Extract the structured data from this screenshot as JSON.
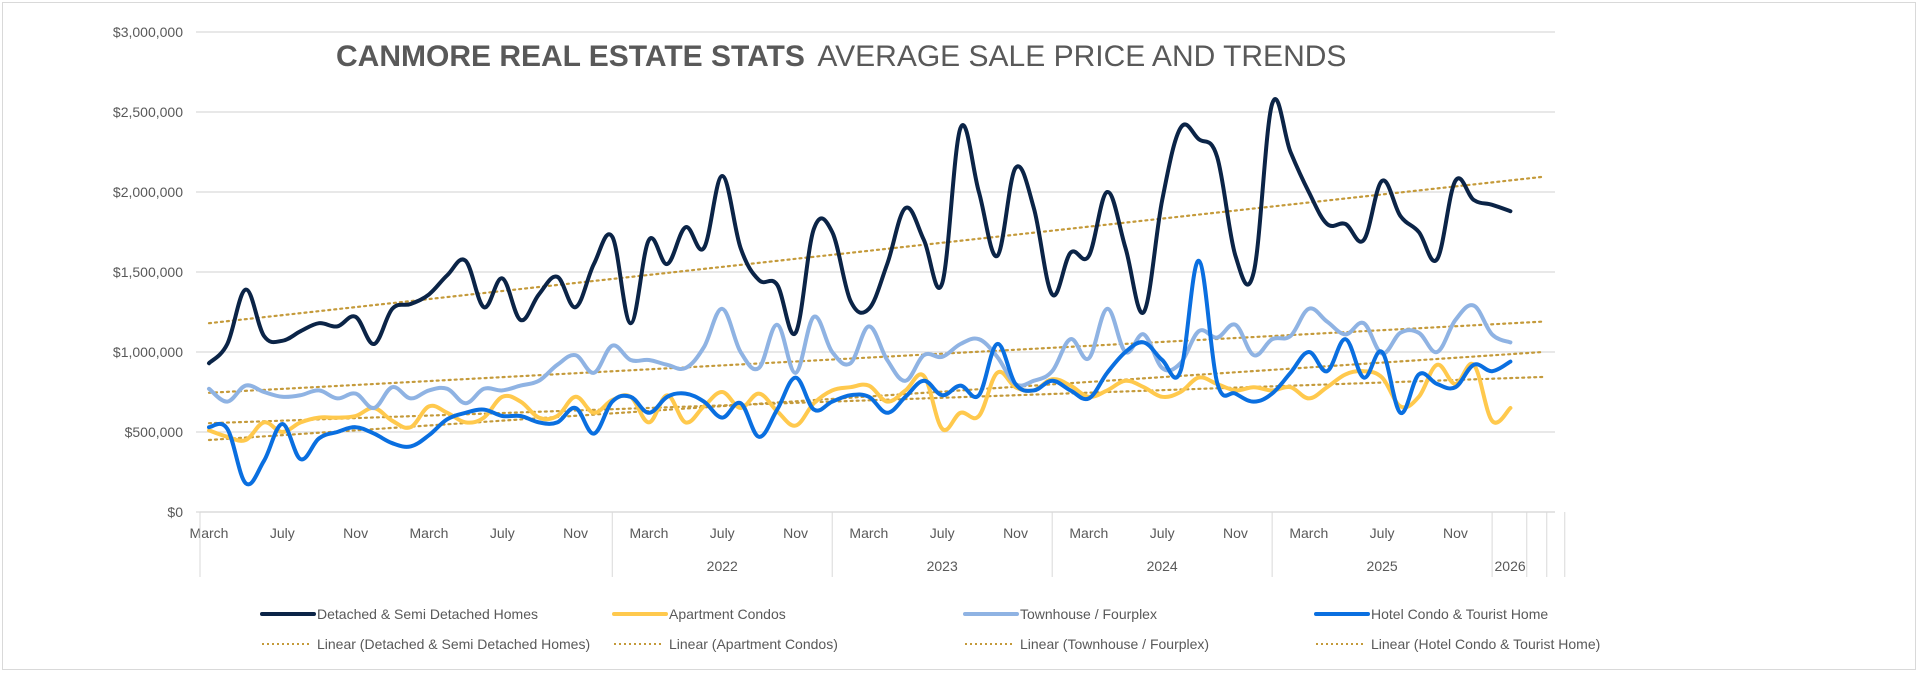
{
  "chart_data": {
    "type": "line",
    "title_bold": "CANMORE REAL ESTATE STATS",
    "title_rest": "AVERAGE SALE PRICE AND TRENDS",
    "xlabel": "",
    "ylabel": "",
    "ylim": [
      0,
      3000000
    ],
    "yticks": [
      0,
      500000,
      1000000,
      1500000,
      2000000,
      2500000,
      3000000
    ],
    "ytick_labels": [
      "$0",
      "$500,000",
      "$1,000,000",
      "$1,500,000",
      "$2,000,000",
      "$2,500,000",
      "$3,000,000"
    ],
    "grid": true,
    "legend_position": "bottom",
    "x_start": "March 2020",
    "x_month_labels": [
      {
        "label": "March",
        "index": 0
      },
      {
        "label": "July",
        "index": 4
      },
      {
        "label": "Nov",
        "index": 8
      },
      {
        "label": "March",
        "index": 12
      },
      {
        "label": "July",
        "index": 16
      },
      {
        "label": "Nov",
        "index": 20
      },
      {
        "label": "March",
        "index": 24
      },
      {
        "label": "July",
        "index": 28
      },
      {
        "label": "Nov",
        "index": 32
      },
      {
        "label": "March",
        "index": 36
      },
      {
        "label": "July",
        "index": 40
      },
      {
        "label": "Nov",
        "index": 44
      },
      {
        "label": "March",
        "index": 48
      },
      {
        "label": "July",
        "index": 52
      },
      {
        "label": "Nov",
        "index": 56
      },
      {
        "label": "March",
        "index": 60
      },
      {
        "label": "July",
        "index": 64
      },
      {
        "label": "Nov",
        "index": 68
      }
    ],
    "x_year_groups": [
      {
        "label": "",
        "start": -2,
        "end": 22
      },
      {
        "label": "2022",
        "start": 22,
        "end": 34
      },
      {
        "label": "2023",
        "start": 34,
        "end": 46
      },
      {
        "label": "2024",
        "start": 46,
        "end": 58
      },
      {
        "label": "2025",
        "start": 58,
        "end": 70
      },
      {
        "label": "2026",
        "start": 70,
        "end": 72
      }
    ],
    "series": [
      {
        "name": "Detached & Semi Detached Homes",
        "color": "#0b2447",
        "values": [
          930000,
          1050000,
          1390000,
          1100000,
          1070000,
          1130000,
          1180000,
          1160000,
          1220000,
          1050000,
          1270000,
          1300000,
          1360000,
          1480000,
          1570000,
          1280000,
          1460000,
          1200000,
          1360000,
          1470000,
          1280000,
          1550000,
          1720000,
          1180000,
          1700000,
          1550000,
          1780000,
          1650000,
          2100000,
          1650000,
          1450000,
          1420000,
          1120000,
          1770000,
          1750000,
          1320000,
          1270000,
          1550000,
          1900000,
          1700000,
          1430000,
          2400000,
          2000000,
          1600000,
          2150000,
          1900000,
          1360000,
          1620000,
          1600000,
          2000000,
          1650000,
          1250000,
          1950000,
          2400000,
          2330000,
          2220000,
          1600000,
          1500000,
          2550000,
          2250000,
          2000000,
          1800000,
          1800000,
          1700000,
          2070000,
          1850000,
          1750000,
          1580000,
          2070000,
          1950000,
          1920000,
          1880000
        ]
      },
      {
        "name": "Apartment Condos",
        "color": "#ffc94d",
        "values": [
          510000,
          470000,
          450000,
          560000,
          500000,
          560000,
          590000,
          590000,
          600000,
          650000,
          570000,
          530000,
          660000,
          620000,
          560000,
          590000,
          720000,
          690000,
          590000,
          600000,
          720000,
          620000,
          700000,
          720000,
          560000,
          730000,
          560000,
          660000,
          750000,
          650000,
          740000,
          630000,
          540000,
          680000,
          760000,
          780000,
          790000,
          690000,
          760000,
          850000,
          520000,
          620000,
          600000,
          870000,
          780000,
          760000,
          830000,
          790000,
          720000,
          760000,
          820000,
          780000,
          720000,
          750000,
          840000,
          800000,
          760000,
          780000,
          760000,
          780000,
          710000,
          780000,
          860000,
          880000,
          840000,
          660000,
          720000,
          920000,
          800000,
          920000,
          570000,
          650000
        ]
      },
      {
        "name": "Townhouse / Fourplex",
        "color": "#8fb3e3",
        "values": [
          770000,
          690000,
          790000,
          750000,
          720000,
          730000,
          760000,
          710000,
          740000,
          650000,
          780000,
          710000,
          760000,
          770000,
          680000,
          770000,
          760000,
          790000,
          820000,
          920000,
          980000,
          870000,
          1040000,
          950000,
          950000,
          920000,
          900000,
          1030000,
          1270000,
          1000000,
          900000,
          1170000,
          870000,
          1220000,
          1000000,
          930000,
          1160000,
          950000,
          820000,
          980000,
          970000,
          1050000,
          1080000,
          970000,
          800000,
          820000,
          880000,
          1080000,
          960000,
          1270000,
          1000000,
          1110000,
          900000,
          930000,
          1130000,
          1090000,
          1170000,
          980000,
          1080000,
          1100000,
          1270000,
          1190000,
          1110000,
          1180000,
          990000,
          1120000,
          1120000,
          1000000,
          1200000,
          1290000,
          1110000,
          1060000
        ]
      },
      {
        "name": "Hotel Condo & Tourist Home",
        "color": "#0a6fe0",
        "values": [
          530000,
          520000,
          180000,
          320000,
          550000,
          330000,
          460000,
          500000,
          530000,
          490000,
          430000,
          410000,
          480000,
          580000,
          620000,
          640000,
          600000,
          600000,
          560000,
          560000,
          650000,
          490000,
          690000,
          720000,
          620000,
          720000,
          740000,
          690000,
          590000,
          680000,
          470000,
          640000,
          840000,
          640000,
          690000,
          730000,
          720000,
          620000,
          720000,
          820000,
          730000,
          790000,
          730000,
          1050000,
          800000,
          760000,
          820000,
          760000,
          710000,
          870000,
          1000000,
          1060000,
          950000,
          880000,
          1570000,
          810000,
          740000,
          690000,
          740000,
          870000,
          1000000,
          880000,
          1080000,
          840000,
          1000000,
          620000,
          860000,
          800000,
          780000,
          920000,
          880000,
          940000
        ]
      }
    ],
    "trendlines": [
      {
        "name": "Linear (Detached & Semi Detached Homes)",
        "color": "#c49a3a",
        "start": 1180000,
        "end": 2095000
      },
      {
        "name": "Linear (Apartment Condos)",
        "color": "#c49a3a",
        "start": 555000,
        "end": 844000
      },
      {
        "name": "Linear (Townhouse / Fourplex)",
        "color": "#c49a3a",
        "start": 745000,
        "end": 1190000
      },
      {
        "name": "Linear (Hotel Condo & Tourist Home)",
        "color": "#c49a3a",
        "start": 450000,
        "end": 1000000
      }
    ]
  },
  "colors": {
    "text": "#595959",
    "grid": "#d9d9d9",
    "trend": "#c49a3a"
  }
}
